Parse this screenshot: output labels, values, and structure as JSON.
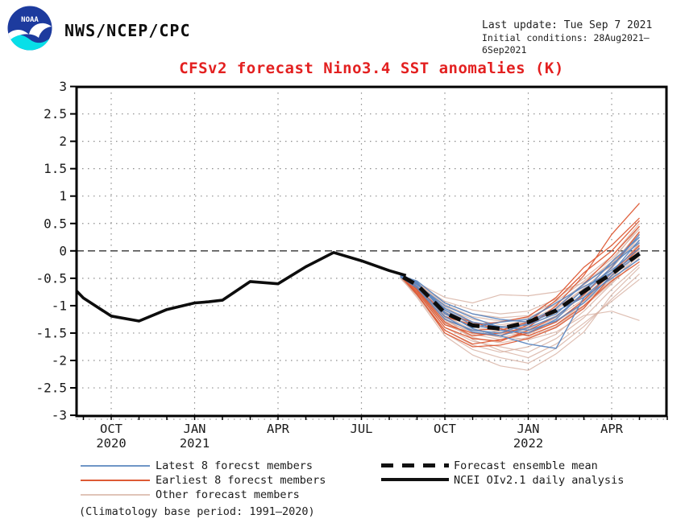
{
  "header": {
    "org": "NWS/NCEP/CPC",
    "last_update": "Last update: Tue Sep 7 2021",
    "initial_conditions": "Initial conditions: 28Aug2021–6Sep2021"
  },
  "title": "CFSv2 forecast Nino3.4 SST anomalies (K)",
  "title_color": "#e32020",
  "legend": {
    "left": [
      {
        "label": "Latest 8 forecst members",
        "color": "#6f96c6"
      },
      {
        "label": "Earliest 8 forecst members",
        "color": "#dd5a35"
      },
      {
        "label": "Other forecast members",
        "color": "#e0c4b8"
      }
    ],
    "right": [
      {
        "label": "Forecast ensemble mean",
        "color": "#111111"
      },
      {
        "label": "NCEI OIv2.1 daily analysis",
        "color": "#111111"
      }
    ],
    "note": "(Climatology base period: 1991–2020)"
  },
  "chart_data": {
    "type": "line",
    "title": "CFSv2 forecast Nino3.4 SST anomalies (K)",
    "xlabel": "",
    "ylabel": "",
    "ylim": [
      -3,
      3
    ],
    "grid": {
      "h_values": [
        -2.5,
        -2,
        -1.5,
        -1,
        -0.5,
        0.5,
        1,
        1.5,
        2,
        2.5
      ],
      "v_months": [
        1,
        4,
        7,
        10,
        13,
        16,
        19
      ],
      "zero_line": 0
    },
    "months_total": 21,
    "yticks": [
      "3",
      "2.5",
      "2",
      "1.5",
      "1",
      "0.5",
      "0",
      "-0.5",
      "-1",
      "-1.5",
      "-2",
      "-2.5",
      "-3"
    ],
    "xticks": [
      {
        "m": 1,
        "label": "OCT",
        "year": "2020"
      },
      {
        "m": 4,
        "label": "JAN",
        "year": "2021"
      },
      {
        "m": 7,
        "label": "APR"
      },
      {
        "m": 10,
        "label": "JUL"
      },
      {
        "m": 13,
        "label": "OCT"
      },
      {
        "m": 16,
        "label": "JAN",
        "year": "2022"
      },
      {
        "m": 19,
        "label": "APR"
      }
    ],
    "observed": {
      "name": "NCEI OIv2.1 daily analysis",
      "color": "#0d0d0d",
      "width": 3.6,
      "points": [
        [
          -0.25,
          -0.73
        ],
        [
          0,
          -0.86
        ],
        [
          1,
          -1.19
        ],
        [
          2,
          -1.28
        ],
        [
          3,
          -1.07
        ],
        [
          4,
          -0.95
        ],
        [
          4.5,
          -0.93
        ],
        [
          5,
          -0.9
        ],
        [
          6,
          -0.56
        ],
        [
          6.5,
          -0.58
        ],
        [
          7,
          -0.6
        ],
        [
          8,
          -0.29
        ],
        [
          9,
          -0.03
        ],
        [
          10,
          -0.18
        ],
        [
          11,
          -0.36
        ],
        [
          11.6,
          -0.45
        ]
      ]
    },
    "ensemble_mean": {
      "name": "Forecast ensemble mean",
      "color": "#0d0d0d",
      "width": 5,
      "points": [
        [
          11.5,
          -0.48
        ],
        [
          12,
          -0.62
        ],
        [
          13,
          -1.13
        ],
        [
          14,
          -1.36
        ],
        [
          15,
          -1.42
        ],
        [
          16,
          -1.3
        ],
        [
          17,
          -1.09
        ],
        [
          18,
          -0.74
        ],
        [
          19,
          -0.42
        ],
        [
          20,
          -0.05
        ]
      ]
    },
    "members": {
      "m_grid": [
        11.4,
        12,
        13,
        14,
        15,
        16,
        17,
        18,
        19,
        20
      ],
      "groups": [
        {
          "name": "Other forecast members",
          "color": "#d8b3a5",
          "width": 1.2,
          "opacity": 0.85,
          "lines": [
            [
              -0.5,
              -0.58,
              -0.85,
              -0.95,
              -0.8,
              -0.82,
              -0.75,
              -0.58,
              -0.28,
              0.32
            ],
            [
              -0.48,
              -0.85,
              -1.55,
              -1.9,
              -2.1,
              -2.18,
              -1.88,
              -1.48,
              -0.8,
              -0.3
            ],
            [
              -0.46,
              -0.7,
              -1.22,
              -1.62,
              -1.82,
              -1.95,
              -1.7,
              -1.32,
              -0.92,
              -0.52
            ],
            [
              -0.44,
              -0.64,
              -1.1,
              -1.42,
              -1.56,
              -1.62,
              -1.48,
              -1.18,
              -1.1,
              -1.27
            ],
            [
              -0.47,
              -0.75,
              -1.35,
              -1.55,
              -1.45,
              -1.38,
              -1.12,
              -0.78,
              -0.38,
              0.02
            ],
            [
              -0.45,
              -0.62,
              -1.05,
              -1.25,
              -1.35,
              -1.28,
              -1.02,
              -0.62,
              -0.22,
              0.18
            ],
            [
              -0.49,
              -0.8,
              -1.45,
              -1.72,
              -1.85,
              -1.75,
              -1.52,
              -1.1,
              -0.6,
              -0.12
            ],
            [
              -0.43,
              -0.6,
              -0.95,
              -1.15,
              -1.22,
              -1.18,
              -0.92,
              -0.55,
              -0.15,
              0.4
            ],
            [
              -0.46,
              -0.72,
              -1.28,
              -1.48,
              -1.58,
              -1.48,
              -1.22,
              -0.88,
              -0.48,
              -0.02
            ],
            [
              -0.44,
              -0.66,
              -1.15,
              -1.38,
              -1.48,
              -1.55,
              -1.35,
              -0.95,
              -0.52,
              0.08
            ],
            [
              -0.48,
              -0.78,
              -1.4,
              -1.65,
              -1.75,
              -1.85,
              -1.6,
              -1.22,
              -0.7,
              -0.25
            ],
            [
              -0.45,
              -0.63,
              -1.02,
              -1.3,
              -1.4,
              -1.32,
              -1.08,
              -0.7,
              -0.32,
              0.25
            ],
            [
              -0.47,
              -0.74,
              -1.32,
              -1.58,
              -1.68,
              -1.58,
              -1.38,
              -1.02,
              -0.58,
              0.0
            ],
            [
              -0.44,
              -0.61,
              -0.98,
              -1.2,
              -1.28,
              -1.22,
              -0.98,
              -0.6,
              -0.2,
              0.45
            ],
            [
              -0.46,
              -0.69,
              -1.18,
              -1.45,
              -1.52,
              -1.42,
              -1.18,
              -0.82,
              -0.42,
              0.12
            ],
            [
              -0.5,
              -0.82,
              -1.5,
              -1.8,
              -1.95,
              -2.05,
              -1.78,
              -1.38,
              -0.88,
              -0.42
            ],
            [
              -0.43,
              -0.59,
              -0.92,
              -1.08,
              -1.15,
              -1.1,
              -0.88,
              -0.5,
              -0.1,
              0.5
            ],
            [
              -0.45,
              -0.67,
              -1.12,
              -1.35,
              -1.42,
              -1.48,
              -1.28,
              -0.92,
              -0.45,
              0.15
            ],
            [
              -0.47,
              -0.71,
              -1.25,
              -1.52,
              -1.62,
              -1.52,
              -1.3,
              -0.95,
              -0.55,
              -0.08
            ],
            [
              -0.44,
              -0.65,
              -1.08,
              -1.32,
              -1.38,
              -1.3,
              -1.05,
              -0.68,
              -0.25,
              0.35
            ]
          ]
        },
        {
          "name": "Earliest 8 forecst members",
          "color": "#dd5a35",
          "width": 1.3,
          "opacity": 0.95,
          "lines": [
            [
              -0.42,
              -0.7,
              -1.3,
              -1.55,
              -1.5,
              -1.4,
              -1.0,
              -0.45,
              0.3,
              0.87
            ],
            [
              -0.45,
              -0.75,
              -1.4,
              -1.6,
              -1.65,
              -1.45,
              -1.2,
              -0.8,
              -0.3,
              0.35
            ],
            [
              -0.44,
              -0.65,
              -1.2,
              -1.35,
              -1.3,
              -1.2,
              -0.85,
              -0.3,
              0.1,
              0.6
            ],
            [
              -0.46,
              -0.8,
              -1.45,
              -1.7,
              -1.62,
              -1.5,
              -1.3,
              -0.9,
              -0.4,
              0.1
            ],
            [
              -0.43,
              -0.72,
              -1.35,
              -1.5,
              -1.55,
              -1.35,
              -1.05,
              -0.6,
              -0.1,
              0.45
            ],
            [
              -0.47,
              -0.68,
              -1.25,
              -1.45,
              -1.42,
              -1.55,
              -1.35,
              -1.0,
              -0.55,
              -0.2
            ],
            [
              -0.45,
              -0.78,
              -1.5,
              -1.75,
              -1.72,
              -1.6,
              -1.4,
              -1.05,
              -0.45,
              0.05
            ],
            [
              -0.44,
              -0.66,
              -1.15,
              -1.3,
              -1.45,
              -1.3,
              -0.9,
              -0.4,
              0.0,
              0.55
            ]
          ]
        },
        {
          "name": "Latest 8 forecst members",
          "color": "#5d87c0",
          "width": 1.4,
          "opacity": 0.95,
          "lines": [
            [
              -0.45,
              -0.55,
              -0.95,
              -1.15,
              -1.25,
              -1.3,
              -1.05,
              -0.6,
              -0.25,
              0.15
            ],
            [
              -0.45,
              -0.6,
              -1.05,
              -1.3,
              -1.38,
              -1.45,
              -1.28,
              -0.95,
              -0.45,
              -0.05
            ],
            [
              -0.48,
              -0.65,
              -1.2,
              -1.48,
              -1.55,
              -1.4,
              -1.2,
              -0.78,
              -0.3,
              0.3
            ],
            [
              -0.42,
              -0.58,
              -1.12,
              -1.42,
              -1.55,
              -1.7,
              -1.78,
              -0.85,
              -0.4,
              -0.02
            ],
            [
              -0.46,
              -0.62,
              -1.0,
              -1.22,
              -1.4,
              -1.35,
              -1.15,
              -0.7,
              -0.35,
              0.05
            ],
            [
              -0.44,
              -0.57,
              -1.15,
              -1.4,
              -1.3,
              -1.25,
              -0.95,
              -0.65,
              -0.4,
              0.2
            ],
            [
              -0.47,
              -0.68,
              -1.25,
              -1.45,
              -1.5,
              -1.32,
              -1.1,
              -0.85,
              -0.5,
              -0.15
            ],
            [
              -0.43,
              -0.6,
              -1.08,
              -1.35,
              -1.45,
              -1.5,
              -1.25,
              -0.75,
              -0.2,
              0.25
            ]
          ]
        }
      ]
    }
  }
}
